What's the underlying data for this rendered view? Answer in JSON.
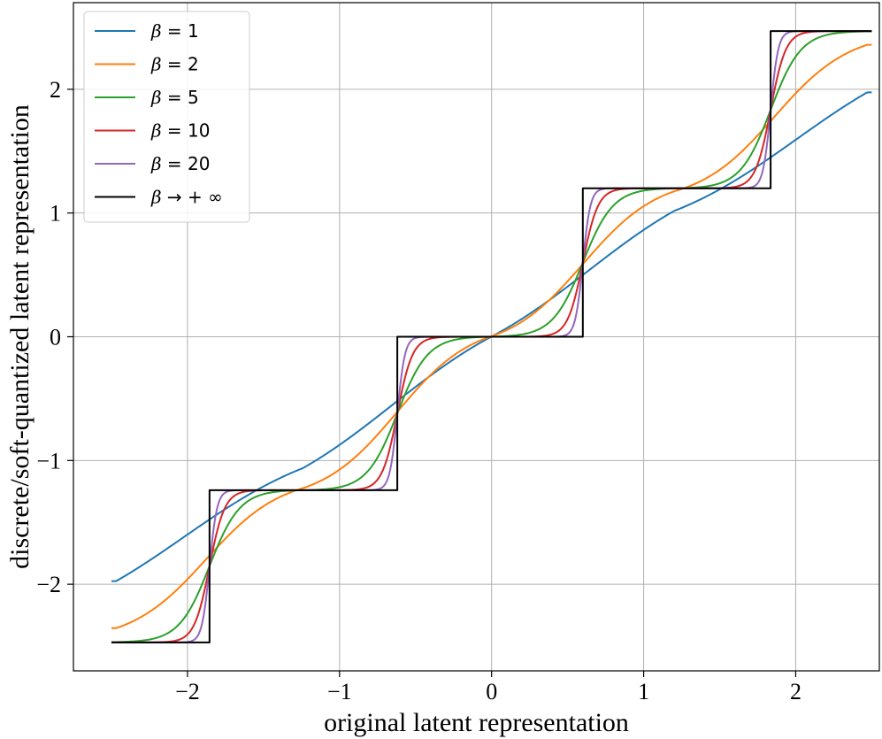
{
  "chart_data": {
    "type": "line",
    "title": "",
    "xlabel": "original latent representation",
    "ylabel": "discrete/soft-quantized latent representation",
    "xlim": [
      -2.75,
      2.55
    ],
    "ylim": [
      -2.7,
      2.7
    ],
    "x_range": [
      -2.5,
      2.5
    ],
    "grid": true,
    "legend_position": "upper-left",
    "x_ticks": [
      {
        "value": -2,
        "label": "−2"
      },
      {
        "value": -1,
        "label": "−1"
      },
      {
        "value": 0,
        "label": "0"
      },
      {
        "value": 1,
        "label": "1"
      },
      {
        "value": 2,
        "label": "2"
      }
    ],
    "y_ticks": [
      {
        "value": -2,
        "label": "−2"
      },
      {
        "value": -1,
        "label": "−1"
      },
      {
        "value": 0,
        "label": "0"
      },
      {
        "value": 1,
        "label": "1"
      },
      {
        "value": 2,
        "label": "2"
      }
    ],
    "quantization_levels": [
      -2.47,
      -1.24,
      0.0,
      1.2,
      2.47
    ],
    "series": [
      {
        "name": "β = 1",
        "beta": 1,
        "color": "#1f77b4"
      },
      {
        "name": "β = 2",
        "beta": 2,
        "color": "#ff7f0e"
      },
      {
        "name": "β = 5",
        "beta": 5,
        "color": "#2ca02c"
      },
      {
        "name": "β = 10",
        "beta": 10,
        "color": "#d62728"
      },
      {
        "name": "β = 20",
        "beta": 20,
        "color": "#9467bd"
      },
      {
        "name": "β → + ∞",
        "beta": "inf",
        "color": "#000000"
      }
    ]
  }
}
